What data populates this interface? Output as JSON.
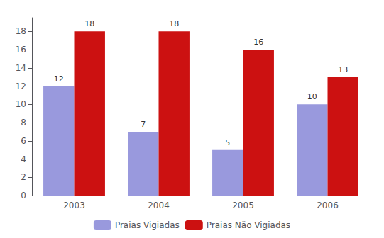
{
  "chart_data": {
    "type": "bar",
    "categories": [
      "2003",
      "2004",
      "2005",
      "2006"
    ],
    "series": [
      {
        "name": "Praias Vigiadas",
        "color": "#9999dd",
        "values": [
          12,
          7,
          5,
          10
        ]
      },
      {
        "name": "Praias Não Vigiadas",
        "color": "#cc1111",
        "values": [
          18,
          18,
          16,
          13
        ]
      }
    ],
    "ylim": [
      0,
      19.5
    ],
    "yticks": [
      0,
      2,
      4,
      6,
      8,
      10,
      12,
      14,
      16,
      18
    ],
    "grid": false,
    "legend": "bottom",
    "data_labels": true
  }
}
